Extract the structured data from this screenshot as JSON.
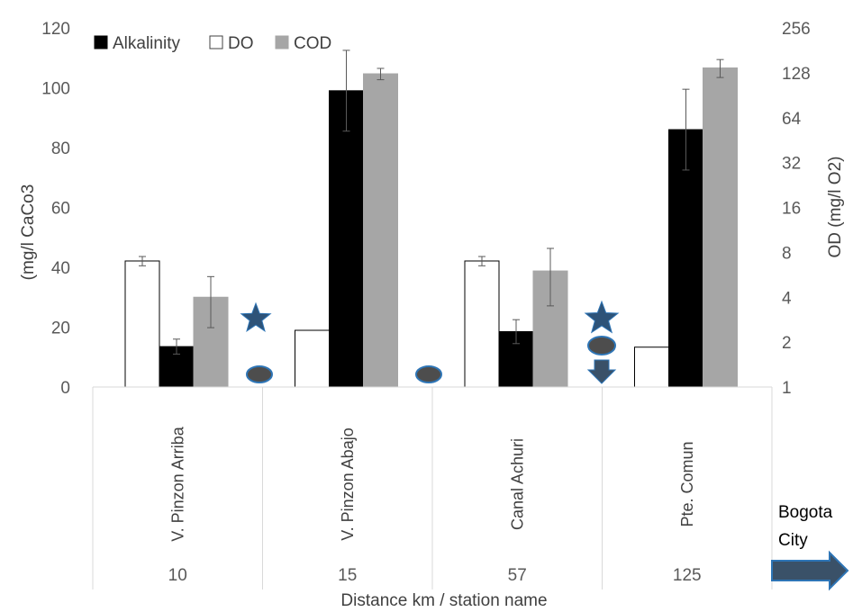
{
  "chart_data": {
    "type": "bar",
    "categories": [
      "V. Pinzon Arriba",
      "V. Pinzon Abajo",
      "Canal Achuri",
      "Pte. Comun"
    ],
    "distances": [
      "10",
      "15",
      "57",
      "125"
    ],
    "xlabel": "Distance km / station name",
    "ylabel_left": "(mg/l CaCo3",
    "ylabel_right": "OD (mg/l O2)",
    "ylim_left": [
      0,
      120
    ],
    "yticks_left": [
      "0",
      "20",
      "40",
      "60",
      "80",
      "100",
      "120"
    ],
    "yscale_right": "log2",
    "ylim_right": [
      1,
      256
    ],
    "yticks_right": [
      "1",
      "2",
      "4",
      "8",
      "16",
      "32",
      "64",
      "128",
      "256"
    ],
    "legend_position": "top-left",
    "series": [
      {
        "name": "Alkalinity",
        "axis": "left",
        "color": "#000000",
        "values": [
          13.5,
          99,
          18.5,
          86
        ],
        "errors": [
          2.5,
          13.5,
          4,
          13.5
        ]
      },
      {
        "name": "DO",
        "axis": "right",
        "color": "#ffffff",
        "values": [
          7,
          2.4,
          7,
          1.85
        ],
        "errors": [
          0.5,
          0,
          0.5,
          0
        ]
      },
      {
        "name": "COD",
        "axis": "right",
        "color": "#a6a6a6",
        "values": [
          4,
          126,
          6,
          138
        ],
        "errors": [
          1.5,
          11,
          2.5,
          19
        ]
      }
    ],
    "annotation": [
      "Bogota",
      "City"
    ]
  },
  "colors": {
    "star": "#2e5378",
    "marker": "#4d4d4d",
    "marker_outline": "#2e75b6",
    "arrow": "#3a5168",
    "arrow_outline": "#2e75b6"
  }
}
